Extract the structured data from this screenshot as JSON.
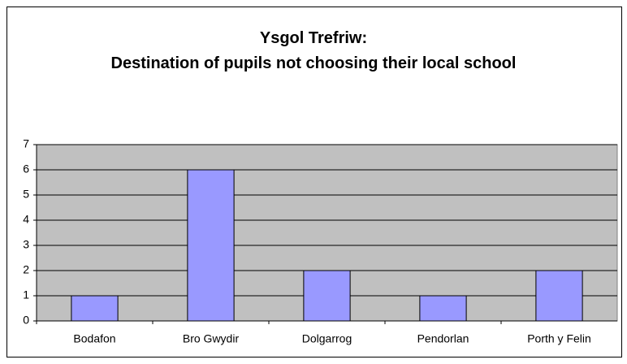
{
  "chart_data": {
    "type": "bar",
    "title": "Ysgol Trefriw:\nDestination of pupils not choosing their local school",
    "categories": [
      "Bodafon",
      "Bro Gwydir",
      "Dolgarrog",
      "Pendorlan",
      "Porth y Felin"
    ],
    "values": [
      1,
      6,
      2,
      1,
      2
    ],
    "color": "#9999ff",
    "ylim": [
      0,
      7
    ],
    "yticks": [
      0,
      1,
      2,
      3,
      4,
      5,
      6,
      7
    ],
    "grid": true
  }
}
